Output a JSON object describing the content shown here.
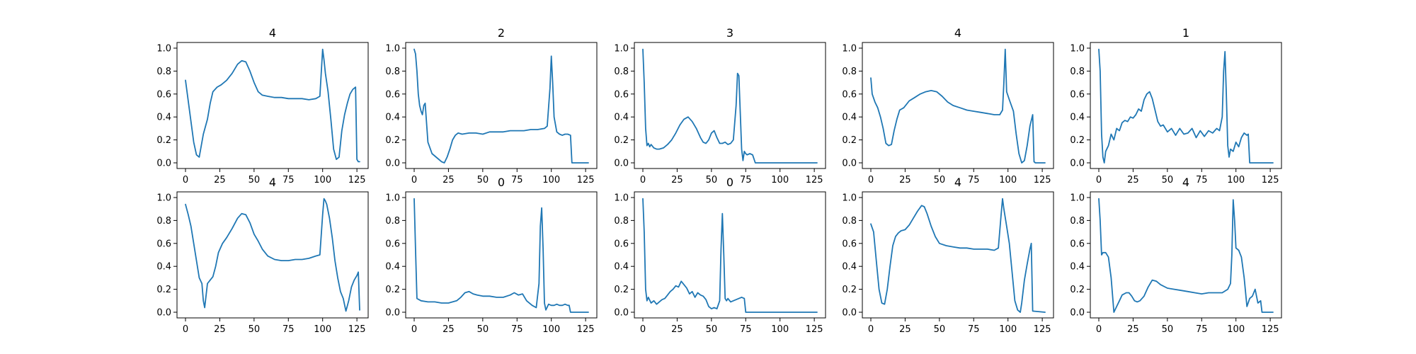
{
  "figure": {
    "line_color": "#1f77b4"
  },
  "chart_data": [
    {
      "type": "line",
      "title": "4",
      "xlim": [
        0,
        127
      ],
      "ylim": [
        0,
        1
      ],
      "xticks": [
        0,
        25,
        50,
        75,
        100,
        125
      ],
      "yticks": [
        0.0,
        0.2,
        0.4,
        0.6,
        0.8,
        1.0
      ],
      "xtick_labels": [
        "0",
        "25",
        "50",
        "75",
        "100",
        "125"
      ],
      "ytick_labels": [
        "0.0",
        "0.2",
        "0.4",
        "0.6",
        "0.8",
        "1.0"
      ],
      "x": [
        0,
        3,
        6,
        8,
        10,
        13,
        16,
        18,
        20,
        23,
        26,
        30,
        34,
        38,
        41,
        44,
        47,
        50,
        53,
        56,
        60,
        65,
        70,
        75,
        80,
        85,
        90,
        95,
        98,
        100,
        101,
        102,
        104,
        106,
        108,
        110,
        112,
        114,
        116,
        118,
        120,
        122,
        124,
        125,
        126,
        127
      ],
      "y": [
        0.72,
        0.45,
        0.18,
        0.07,
        0.05,
        0.25,
        0.38,
        0.52,
        0.62,
        0.66,
        0.68,
        0.72,
        0.78,
        0.86,
        0.89,
        0.88,
        0.8,
        0.7,
        0.62,
        0.59,
        0.58,
        0.57,
        0.57,
        0.56,
        0.56,
        0.56,
        0.55,
        0.56,
        0.58,
        0.99,
        0.9,
        0.78,
        0.62,
        0.38,
        0.12,
        0.03,
        0.05,
        0.28,
        0.42,
        0.52,
        0.6,
        0.64,
        0.66,
        0.03,
        0.01,
        0.01
      ]
    },
    {
      "type": "line",
      "title": "2",
      "xlim": [
        0,
        127
      ],
      "ylim": [
        0,
        1
      ],
      "xticks": [
        0,
        25,
        50,
        75,
        100,
        125
      ],
      "yticks": [
        0.0,
        0.2,
        0.4,
        0.6,
        0.8,
        1.0
      ],
      "xtick_labels": [
        "0",
        "25",
        "50",
        "75",
        "100",
        "125"
      ],
      "ytick_labels": [
        "0.0",
        "0.2",
        "0.4",
        "0.6",
        "0.8",
        "1.0"
      ],
      "x": [
        0,
        1,
        2,
        3,
        4,
        5,
        6,
        7,
        8,
        10,
        13,
        17,
        20,
        22,
        24,
        26,
        28,
        30,
        32,
        35,
        40,
        45,
        50,
        55,
        60,
        65,
        70,
        75,
        80,
        85,
        90,
        95,
        97,
        99,
        100,
        101,
        102,
        104,
        106,
        108,
        110,
        112,
        114,
        115,
        120,
        127
      ],
      "y": [
        0.99,
        0.95,
        0.8,
        0.6,
        0.5,
        0.45,
        0.42,
        0.5,
        0.52,
        0.18,
        0.08,
        0.04,
        0.01,
        0.0,
        0.05,
        0.12,
        0.2,
        0.24,
        0.26,
        0.25,
        0.26,
        0.26,
        0.25,
        0.27,
        0.27,
        0.27,
        0.28,
        0.28,
        0.28,
        0.29,
        0.29,
        0.3,
        0.32,
        0.65,
        0.93,
        0.7,
        0.4,
        0.27,
        0.25,
        0.24,
        0.25,
        0.25,
        0.24,
        0.0,
        0.0,
        0.0
      ]
    },
    {
      "type": "line",
      "title": "3",
      "xlim": [
        0,
        127
      ],
      "ylim": [
        0,
        1
      ],
      "xticks": [
        0,
        25,
        50,
        75,
        100,
        125
      ],
      "yticks": [
        0.0,
        0.2,
        0.4,
        0.6,
        0.8,
        1.0
      ],
      "xtick_labels": [
        "0",
        "25",
        "50",
        "75",
        "100",
        "125"
      ],
      "ytick_labels": [
        "0.0",
        "0.2",
        "0.4",
        "0.6",
        "0.8",
        "1.0"
      ],
      "x": [
        0,
        1,
        2,
        3,
        4,
        5,
        6,
        8,
        10,
        12,
        15,
        18,
        21,
        24,
        27,
        30,
        33,
        36,
        39,
        42,
        44,
        46,
        48,
        50,
        52,
        54,
        56,
        58,
        60,
        62,
        64,
        66,
        68,
        69,
        70,
        71,
        72,
        73,
        74,
        75,
        76,
        78,
        80,
        82,
        84,
        90,
        100,
        110,
        127
      ],
      "y": [
        0.99,
        0.7,
        0.3,
        0.15,
        0.17,
        0.14,
        0.16,
        0.13,
        0.12,
        0.12,
        0.13,
        0.16,
        0.2,
        0.26,
        0.33,
        0.38,
        0.4,
        0.36,
        0.3,
        0.22,
        0.18,
        0.17,
        0.2,
        0.26,
        0.28,
        0.22,
        0.17,
        0.17,
        0.18,
        0.16,
        0.17,
        0.2,
        0.5,
        0.78,
        0.76,
        0.45,
        0.12,
        0.02,
        0.1,
        0.08,
        0.07,
        0.08,
        0.07,
        0.0,
        0.0,
        0.0,
        0.0,
        0.0,
        0.0
      ]
    },
    {
      "type": "line",
      "title": "4",
      "xlim": [
        0,
        127
      ],
      "ylim": [
        0,
        1
      ],
      "xticks": [
        0,
        25,
        50,
        75,
        100,
        125
      ],
      "yticks": [
        0.0,
        0.2,
        0.4,
        0.6,
        0.8,
        1.0
      ],
      "xtick_labels": [
        "0",
        "25",
        "50",
        "75",
        "100",
        "125"
      ],
      "ytick_labels": [
        "0.0",
        "0.2",
        "0.4",
        "0.6",
        "0.8",
        "1.0"
      ],
      "x": [
        0,
        1,
        3,
        5,
        7,
        9,
        11,
        13,
        15,
        17,
        19,
        21,
        24,
        28,
        32,
        36,
        40,
        44,
        48,
        52,
        56,
        60,
        65,
        70,
        75,
        80,
        85,
        90,
        94,
        96,
        97,
        98,
        99,
        101,
        104,
        106,
        108,
        110,
        112,
        114,
        116,
        118,
        119,
        120,
        122,
        127
      ],
      "y": [
        0.74,
        0.6,
        0.53,
        0.48,
        0.4,
        0.3,
        0.17,
        0.15,
        0.16,
        0.28,
        0.38,
        0.46,
        0.48,
        0.54,
        0.57,
        0.6,
        0.62,
        0.63,
        0.62,
        0.58,
        0.53,
        0.5,
        0.48,
        0.46,
        0.45,
        0.44,
        0.43,
        0.42,
        0.42,
        0.46,
        0.7,
        0.99,
        0.62,
        0.55,
        0.45,
        0.25,
        0.08,
        0.0,
        0.02,
        0.15,
        0.32,
        0.42,
        0.01,
        0.0,
        0.0,
        0.0
      ]
    },
    {
      "type": "line",
      "title": "1",
      "xlim": [
        0,
        127
      ],
      "ylim": [
        0,
        1
      ],
      "xticks": [
        0,
        25,
        50,
        75,
        100,
        125
      ],
      "yticks": [
        0.0,
        0.2,
        0.4,
        0.6,
        0.8,
        1.0
      ],
      "xtick_labels": [
        "0",
        "25",
        "50",
        "75",
        "100",
        "125"
      ],
      "ytick_labels": [
        "0.0",
        "0.2",
        "0.4",
        "0.6",
        "0.8",
        "1.0"
      ],
      "x": [
        0,
        1,
        2,
        3,
        4,
        5,
        7,
        9,
        11,
        13,
        15,
        17,
        19,
        21,
        23,
        25,
        27,
        29,
        31,
        33,
        35,
        37,
        39,
        41,
        43,
        45,
        47,
        50,
        53,
        56,
        59,
        62,
        65,
        68,
        71,
        74,
        77,
        80,
        83,
        86,
        88,
        90,
        91,
        92,
        93,
        94,
        95,
        96,
        98,
        100,
        102,
        104,
        106,
        108,
        109,
        110,
        120,
        127
      ],
      "y": [
        0.99,
        0.8,
        0.25,
        0.05,
        0.0,
        0.1,
        0.15,
        0.25,
        0.2,
        0.3,
        0.28,
        0.35,
        0.37,
        0.36,
        0.4,
        0.39,
        0.42,
        0.47,
        0.45,
        0.55,
        0.6,
        0.62,
        0.56,
        0.46,
        0.36,
        0.32,
        0.33,
        0.27,
        0.3,
        0.24,
        0.3,
        0.25,
        0.26,
        0.3,
        0.22,
        0.28,
        0.23,
        0.28,
        0.26,
        0.3,
        0.28,
        0.4,
        0.8,
        0.97,
        0.6,
        0.15,
        0.05,
        0.12,
        0.1,
        0.18,
        0.14,
        0.22,
        0.26,
        0.24,
        0.25,
        0.0,
        0.0,
        0.0
      ]
    },
    {
      "type": "line",
      "title": "4",
      "xlim": [
        0,
        127
      ],
      "ylim": [
        0,
        1
      ],
      "xticks": [
        0,
        25,
        50,
        75,
        100,
        125
      ],
      "yticks": [
        0.0,
        0.2,
        0.4,
        0.6,
        0.8,
        1.0
      ],
      "xtick_labels": [
        "0",
        "25",
        "50",
        "75",
        "100",
        "125"
      ],
      "ytick_labels": [
        "0.0",
        "0.2",
        "0.4",
        "0.6",
        "0.8",
        "1.0"
      ],
      "x": [
        0,
        2,
        4,
        6,
        8,
        10,
        12,
        13,
        14,
        16,
        18,
        20,
        22,
        24,
        27,
        30,
        34,
        38,
        41,
        44,
        47,
        50,
        53,
        56,
        60,
        65,
        70,
        75,
        80,
        85,
        90,
        95,
        98,
        100,
        101,
        102,
        103,
        105,
        107,
        109,
        111,
        113,
        115,
        117,
        119,
        121,
        123,
        125,
        126,
        127
      ],
      "y": [
        0.94,
        0.85,
        0.75,
        0.6,
        0.45,
        0.3,
        0.25,
        0.1,
        0.04,
        0.25,
        0.28,
        0.31,
        0.4,
        0.52,
        0.6,
        0.65,
        0.73,
        0.82,
        0.86,
        0.85,
        0.78,
        0.68,
        0.62,
        0.55,
        0.49,
        0.46,
        0.45,
        0.45,
        0.46,
        0.46,
        0.47,
        0.49,
        0.5,
        0.85,
        0.99,
        0.97,
        0.94,
        0.82,
        0.65,
        0.45,
        0.3,
        0.18,
        0.12,
        0.01,
        0.1,
        0.22,
        0.28,
        0.32,
        0.35,
        0.02
      ]
    },
    {
      "type": "line",
      "title": "0",
      "xlim": [
        0,
        127
      ],
      "ylim": [
        0,
        1
      ],
      "xticks": [
        0,
        25,
        50,
        75,
        100,
        125
      ],
      "yticks": [
        0.0,
        0.2,
        0.4,
        0.6,
        0.8,
        1.0
      ],
      "xtick_labels": [
        "0",
        "25",
        "50",
        "75",
        "100",
        "125"
      ],
      "ytick_labels": [
        "0.0",
        "0.2",
        "0.4",
        "0.6",
        "0.8",
        "1.0"
      ],
      "x": [
        0,
        1,
        2,
        5,
        10,
        15,
        20,
        25,
        28,
        31,
        34,
        37,
        40,
        43,
        46,
        50,
        55,
        60,
        65,
        70,
        73,
        76,
        79,
        82,
        86,
        89,
        91,
        92,
        93,
        94,
        95,
        96,
        98,
        100,
        102,
        104,
        106,
        108,
        110,
        112,
        113,
        114,
        120,
        127
      ],
      "y": [
        0.99,
        0.55,
        0.12,
        0.1,
        0.09,
        0.09,
        0.08,
        0.08,
        0.09,
        0.1,
        0.13,
        0.17,
        0.18,
        0.16,
        0.15,
        0.14,
        0.14,
        0.13,
        0.13,
        0.15,
        0.17,
        0.15,
        0.16,
        0.1,
        0.06,
        0.04,
        0.25,
        0.75,
        0.91,
        0.55,
        0.08,
        0.02,
        0.07,
        0.06,
        0.06,
        0.07,
        0.06,
        0.06,
        0.07,
        0.06,
        0.06,
        0.0,
        0.0,
        0.0
      ]
    },
    {
      "type": "line",
      "title": "0",
      "xlim": [
        0,
        127
      ],
      "ylim": [
        0,
        1
      ],
      "xticks": [
        0,
        25,
        50,
        75,
        100,
        125
      ],
      "yticks": [
        0.0,
        0.2,
        0.4,
        0.6,
        0.8,
        1.0
      ],
      "xtick_labels": [
        "0",
        "25",
        "50",
        "75",
        "100",
        "125"
      ],
      "ytick_labels": [
        "0.0",
        "0.2",
        "0.4",
        "0.6",
        "0.8",
        "1.0"
      ],
      "x": [
        0,
        1,
        2,
        3,
        4,
        6,
        8,
        10,
        12,
        14,
        16,
        18,
        20,
        22,
        24,
        26,
        28,
        30,
        32,
        34,
        36,
        38,
        40,
        42,
        44,
        46,
        48,
        50,
        52,
        54,
        56,
        57,
        58,
        59,
        60,
        61,
        62,
        64,
        66,
        68,
        70,
        72,
        74,
        75,
        80,
        90,
        100,
        110,
        127
      ],
      "y": [
        0.99,
        0.7,
        0.2,
        0.1,
        0.13,
        0.08,
        0.1,
        0.07,
        0.09,
        0.11,
        0.12,
        0.15,
        0.18,
        0.2,
        0.23,
        0.22,
        0.27,
        0.24,
        0.21,
        0.16,
        0.18,
        0.13,
        0.17,
        0.15,
        0.14,
        0.11,
        0.05,
        0.03,
        0.04,
        0.03,
        0.1,
        0.55,
        0.86,
        0.5,
        0.12,
        0.1,
        0.12,
        0.09,
        0.1,
        0.11,
        0.12,
        0.13,
        0.12,
        0.0,
        0.0,
        0.0,
        0.0,
        0.0,
        0.0
      ]
    },
    {
      "type": "line",
      "title": "4",
      "xlim": [
        0,
        127
      ],
      "ylim": [
        0,
        1
      ],
      "xticks": [
        0,
        25,
        50,
        75,
        100,
        125
      ],
      "yticks": [
        0.0,
        0.2,
        0.4,
        0.6,
        0.8,
        1.0
      ],
      "xtick_labels": [
        "0",
        "25",
        "50",
        "75",
        "100",
        "125"
      ],
      "ytick_labels": [
        "0.0",
        "0.2",
        "0.4",
        "0.6",
        "0.8",
        "1.0"
      ],
      "x": [
        0,
        2,
        4,
        6,
        8,
        10,
        12,
        14,
        16,
        18,
        20,
        22,
        25,
        28,
        31,
        34,
        37,
        39,
        41,
        44,
        47,
        50,
        55,
        60,
        65,
        70,
        75,
        80,
        85,
        90,
        93,
        95,
        96,
        97,
        99,
        101,
        103,
        105,
        107,
        109,
        110,
        112,
        114,
        116,
        117,
        118,
        127
      ],
      "y": [
        0.77,
        0.7,
        0.45,
        0.2,
        0.08,
        0.07,
        0.2,
        0.4,
        0.58,
        0.66,
        0.69,
        0.71,
        0.72,
        0.76,
        0.82,
        0.88,
        0.93,
        0.92,
        0.86,
        0.75,
        0.66,
        0.6,
        0.58,
        0.57,
        0.56,
        0.56,
        0.55,
        0.55,
        0.55,
        0.54,
        0.56,
        0.85,
        0.99,
        0.9,
        0.75,
        0.6,
        0.35,
        0.1,
        0.02,
        0.0,
        0.08,
        0.28,
        0.42,
        0.55,
        0.6,
        0.01,
        0.0
      ]
    },
    {
      "type": "line",
      "title": "4",
      "xlim": [
        0,
        127
      ],
      "ylim": [
        0,
        1
      ],
      "xticks": [
        0,
        25,
        50,
        75,
        100,
        125
      ],
      "yticks": [
        0.0,
        0.2,
        0.4,
        0.6,
        0.8,
        1.0
      ],
      "xtick_labels": [
        "0",
        "25",
        "50",
        "75",
        "100",
        "125"
      ],
      "ytick_labels": [
        "0.0",
        "0.2",
        "0.4",
        "0.6",
        "0.8",
        "1.0"
      ],
      "x": [
        0,
        1,
        2,
        3,
        5,
        7,
        9,
        11,
        13,
        15,
        17,
        20,
        22,
        24,
        26,
        28,
        30,
        33,
        36,
        39,
        42,
        45,
        50,
        55,
        60,
        65,
        70,
        75,
        80,
        85,
        90,
        94,
        96,
        97,
        98,
        99,
        100,
        102,
        104,
        106,
        108,
        110,
        112,
        114,
        116,
        118,
        119,
        120,
        127
      ],
      "y": [
        0.99,
        0.8,
        0.5,
        0.52,
        0.52,
        0.48,
        0.3,
        0.0,
        0.05,
        0.1,
        0.15,
        0.17,
        0.17,
        0.14,
        0.1,
        0.09,
        0.1,
        0.14,
        0.22,
        0.28,
        0.27,
        0.24,
        0.21,
        0.2,
        0.19,
        0.18,
        0.17,
        0.16,
        0.17,
        0.17,
        0.17,
        0.2,
        0.25,
        0.5,
        0.98,
        0.8,
        0.56,
        0.54,
        0.48,
        0.3,
        0.05,
        0.12,
        0.14,
        0.2,
        0.08,
        0.1,
        0.0,
        0.0,
        0.0
      ]
    }
  ]
}
